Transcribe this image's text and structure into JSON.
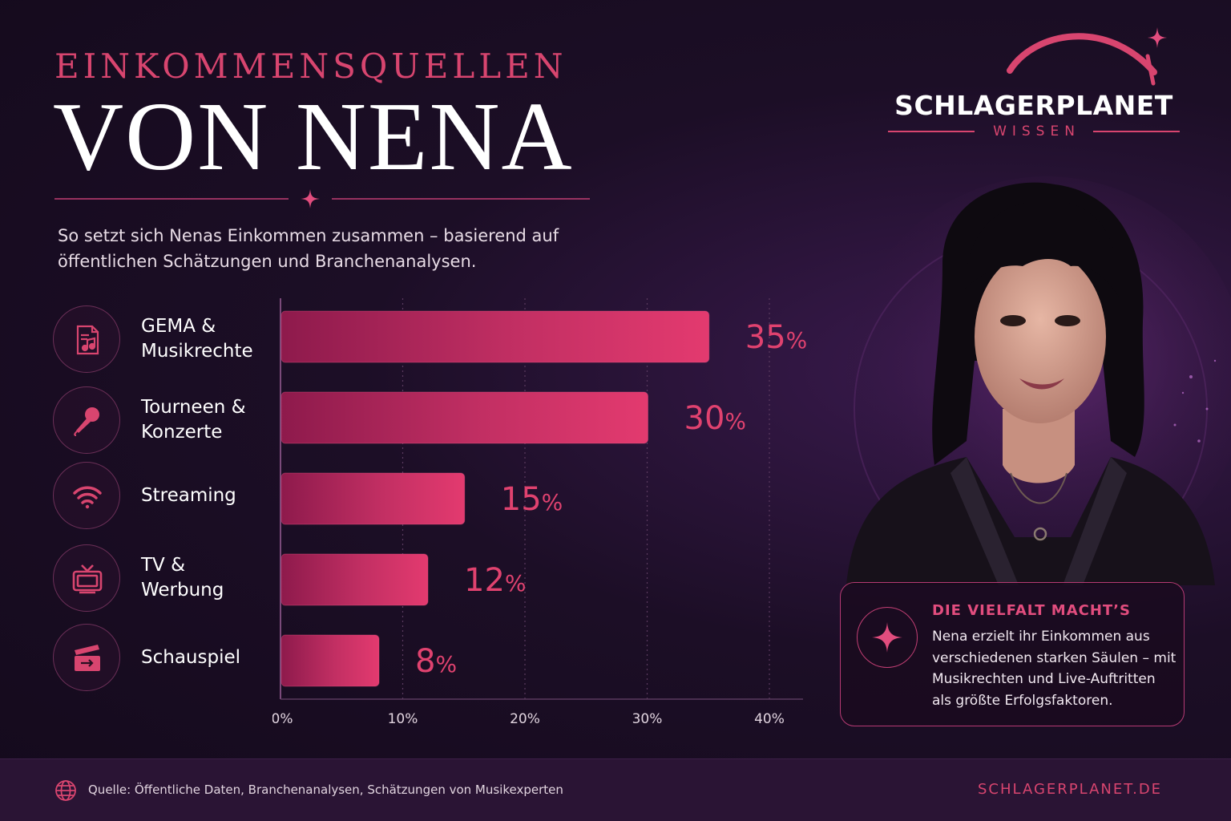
{
  "header": {
    "kicker": "EINKOMMENSQUELLEN",
    "title": "VON NENA",
    "subtitle": "So setzt sich Nenas Einkommen zusammen – basierend auf öffentlichen Schätzungen und Branchenanalysen."
  },
  "brand": {
    "name": "SCHLAGERPLANET",
    "sub": "WISSEN"
  },
  "categories": [
    {
      "label": "GEMA &\nMusikrechte",
      "icon": "music-document-icon"
    },
    {
      "label": "Tourneen &\nKonzerte",
      "icon": "microphone-icon"
    },
    {
      "label": "Streaming",
      "icon": "wifi-signal-icon"
    },
    {
      "label": "TV &\nWerbung",
      "icon": "tv-icon"
    },
    {
      "label": "Schauspiel",
      "icon": "clapperboard-icon"
    }
  ],
  "chart_data": {
    "type": "bar",
    "orientation": "horizontal",
    "categories": [
      "GEMA & Musikrechte",
      "Tourneen & Konzerte",
      "Streaming",
      "TV & Werbung",
      "Schauspiel"
    ],
    "values": [
      35,
      30,
      15,
      12,
      8
    ],
    "value_labels": [
      "35%",
      "30%",
      "15%",
      "12%",
      "8%"
    ],
    "x_ticks": [
      "0%",
      "10%",
      "20%",
      "30%",
      "40%"
    ],
    "xlim": [
      0,
      40
    ],
    "grid": "vertical dotted",
    "bar_color": "#d23a6c"
  },
  "info": {
    "title": "DIE VIELFALT MACHT’S",
    "text": "Nena erzielt ihr Einkommen aus verschiedenen starken Säulen – mit Musikrechten und Live-Auftritten als größte Erfolgsfaktoren."
  },
  "footer": {
    "source": "Quelle: Öffentliche Daten, Branchenanalysen, Schätzungen von Musikexperten",
    "site": "SCHLAGERPLANET.DE"
  },
  "colors": {
    "accent": "#d8456f",
    "background": "#1c0e26"
  }
}
